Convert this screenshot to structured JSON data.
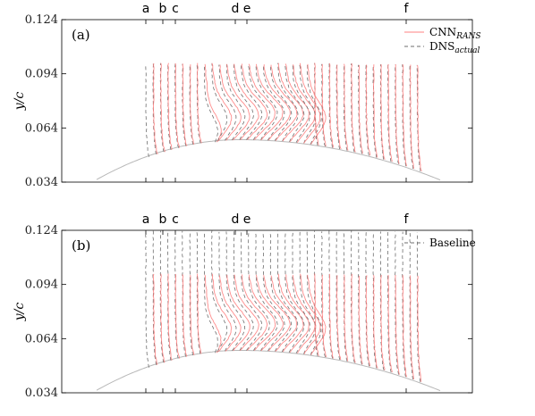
{
  "chart_data": [
    {
      "type": "line",
      "panel_label": "(a)",
      "ylabel": "y/c",
      "ylim": [
        0.034,
        0.124
      ],
      "yticks": [
        "0.124",
        "0.094",
        "0.064",
        "0.034"
      ],
      "station_labels": [
        "a",
        "b",
        "c",
        "d",
        "e",
        "f"
      ],
      "legend": {
        "placement": "top-right",
        "entries": [
          {
            "name": "CNN",
            "sub": "RANS",
            "style": "solid",
            "color": "#ff7f7f"
          },
          {
            "name": "DNS",
            "sub": "actual",
            "style": "dashed",
            "color": "#707070"
          }
        ]
      },
      "show_baseline_upstream": false
    },
    {
      "type": "line",
      "panel_label": "(b)",
      "ylabel": "y/c",
      "ylim": [
        0.034,
        0.124
      ],
      "yticks": [
        "0.124",
        "0.094",
        "0.064",
        "0.034"
      ],
      "station_labels": [
        "a",
        "b",
        "c",
        "d",
        "e",
        "f"
      ],
      "legend": {
        "placement": "top-right",
        "entries": [
          {
            "name": "Baseline",
            "sub": "",
            "style": "dashed",
            "color": "#707070"
          }
        ]
      },
      "show_baseline_upstream": true
    }
  ],
  "colors": {
    "cnn": "#ff8080",
    "dns": "#6e6e6e",
    "surface": "#b8b8b8",
    "axis": "#000000"
  }
}
